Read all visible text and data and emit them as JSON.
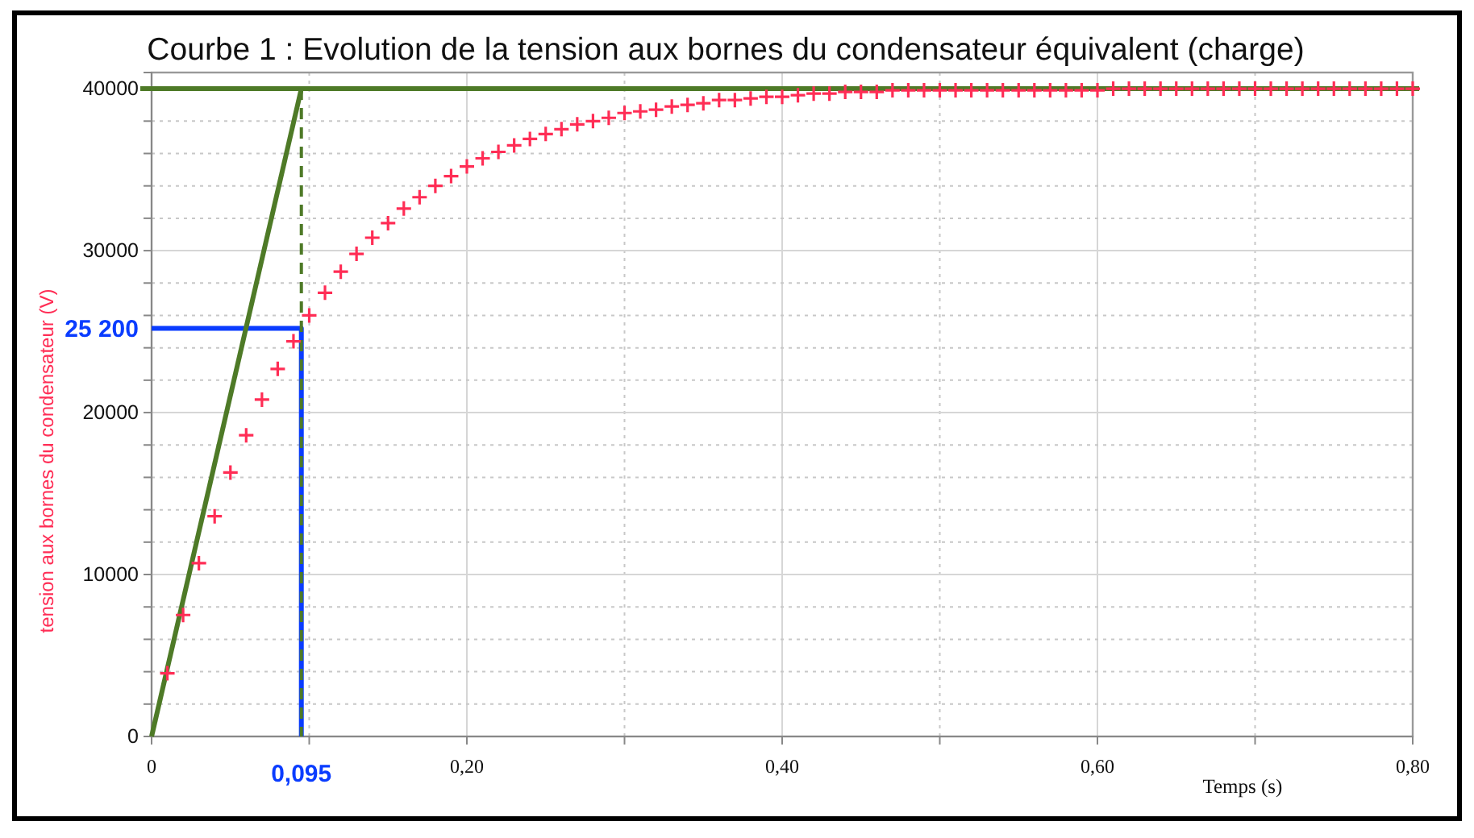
{
  "chart_data": {
    "type": "scatter",
    "title": "Courbe 1 : Evolution de la tension aux bornes du condensateur équivalent (charge)",
    "xlabel": "Temps (s)",
    "ylabel": "tension aux bornes du condensateur (V)",
    "annotations": [
      {
        "text": "25 200",
        "x": 0,
        "y": 25200
      },
      {
        "text": "0,095",
        "x": 0.095,
        "y": 0
      }
    ],
    "xlim": [
      0,
      0.8
    ],
    "ylim": [
      0,
      41000
    ],
    "xticks": [
      0,
      {
        "value": 0.1,
        "label": null
      },
      {
        "value": 0.2,
        "label": "0,20"
      },
      {
        "value": 0.3,
        "label": null
      },
      {
        "value": 0.4,
        "label": "0,40"
      },
      {
        "value": 0.5,
        "label": null
      },
      {
        "value": 0.6,
        "label": "0,60"
      },
      {
        "value": 0.7,
        "label": null
      },
      {
        "value": 0.8,
        "label": "0,80"
      }
    ],
    "yticks": [
      0,
      {
        "value": 2000,
        "label": null
      },
      {
        "value": 4000,
        "label": null
      },
      {
        "value": 6000,
        "label": null
      },
      {
        "value": 8000,
        "label": null
      },
      10000,
      {
        "value": 12000,
        "label": null
      },
      {
        "value": 14000,
        "label": null
      },
      {
        "value": 16000,
        "label": null
      },
      {
        "value": 18000,
        "label": null
      },
      20000,
      {
        "value": 22000,
        "label": null
      },
      {
        "value": 24000,
        "label": null
      },
      {
        "value": 26000,
        "label": null
      },
      {
        "value": 28000,
        "label": null
      },
      30000,
      {
        "value": 32000,
        "label": null
      },
      {
        "value": 34000,
        "label": null
      },
      {
        "value": 36000,
        "label": null
      },
      {
        "value": 38000,
        "label": null
      },
      40000
    ],
    "grid": true,
    "ref_lines": [
      {
        "axis": "y",
        "value": 40000,
        "color": "#4e7a27"
      }
    ],
    "series": [
      {
        "type": "line",
        "color": "#0a3cff",
        "marker": "none",
        "x": [
          0,
          0.095,
          0.095
        ],
        "values": [
          25200,
          25200,
          0
        ]
      },
      {
        "type": "line",
        "color": "#4e7a27",
        "marker": "none",
        "line_style": "dashed",
        "x": [
          0.095,
          0.095
        ],
        "values": [
          40000,
          0
        ]
      },
      {
        "type": "line",
        "color": "#4e7a27",
        "marker": "none",
        "x": [
          0,
          0.095
        ],
        "values": [
          0,
          40000
        ]
      },
      {
        "color": "#ff2d55",
        "marker": "cross",
        "x": [
          0.01,
          0.02,
          0.03,
          0.04,
          0.05,
          0.06,
          0.07,
          0.08,
          0.09,
          0.1,
          0.11,
          0.12,
          0.13,
          0.14,
          0.15,
          0.16,
          0.17,
          0.18,
          0.19,
          0.2,
          0.21,
          0.22,
          0.23,
          0.24,
          0.25,
          0.26,
          0.27,
          0.28,
          0.29,
          0.3,
          0.31,
          0.32,
          0.33,
          0.34,
          0.35,
          0.36,
          0.37,
          0.38,
          0.39,
          0.4,
          0.41,
          0.42,
          0.43,
          0.44,
          0.45,
          0.46,
          0.47,
          0.48,
          0.49,
          0.5,
          0.51,
          0.52,
          0.53,
          0.54,
          0.55,
          0.56,
          0.57,
          0.58,
          0.59,
          0.6,
          0.61,
          0.62,
          0.63,
          0.64,
          0.65,
          0.66,
          0.67,
          0.68,
          0.69,
          0.7,
          0.71,
          0.72,
          0.73,
          0.74,
          0.75,
          0.76,
          0.77,
          0.78,
          0.79,
          0.8
        ],
        "values": [
          3900,
          7500,
          10700,
          13600,
          16300,
          18600,
          20800,
          22700,
          24400,
          26000,
          27400,
          28700,
          29800,
          30800,
          31700,
          32600,
          33300,
          34000,
          34600,
          35200,
          35700,
          36100,
          36500,
          36900,
          37200,
          37500,
          37800,
          38000,
          38200,
          38500,
          38600,
          38700,
          38900,
          39000,
          39100,
          39300,
          39300,
          39400,
          39500,
          39500,
          39600,
          39700,
          39700,
          39800,
          39800,
          39800,
          39900,
          39900,
          39900,
          39900,
          39900,
          39900,
          39900,
          39900,
          39900,
          39900,
          39900,
          39900,
          39900,
          39900,
          40000,
          40000,
          40000,
          40000,
          40000,
          40000,
          40000,
          40000,
          40000,
          40000,
          40000,
          40000,
          40000,
          40000,
          40000,
          40000,
          40000,
          40000,
          40000,
          40000
        ]
      }
    ]
  }
}
